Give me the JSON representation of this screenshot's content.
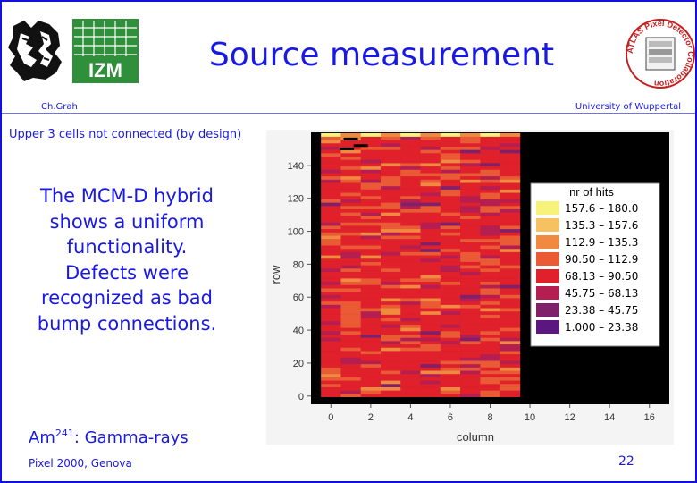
{
  "header": {
    "title": "Source measurement",
    "author": "Ch.Grah",
    "institution": "University of Wuppertal",
    "logo_left_text": "IZM",
    "logo_right_text": "ATLAS Pixel Detector Collaboration"
  },
  "content": {
    "note": "Upper 3 cells not connected (by design)",
    "body_text": "The MCM-D hybrid shows a uniform functionality. Defects were recognized as bad bump connections.",
    "gamma_prefix": "Am",
    "gamma_sup": "241",
    "gamma_suffix": ": Gamma-rays"
  },
  "footer": {
    "conference": "Pixel 2000, Genova",
    "page_number": "22"
  },
  "colors": {
    "text": "#1919e6",
    "background": "#ffffff",
    "border": "#1010e0"
  },
  "chart_data": {
    "type": "heatmap",
    "title": "",
    "xlabel": "column",
    "ylabel": "row",
    "xlim": [
      -1,
      17
    ],
    "ylim": [
      -5,
      160
    ],
    "x_ticks": [
      0,
      2,
      4,
      6,
      8,
      10,
      12,
      14,
      16
    ],
    "y_ticks": [
      0,
      20,
      40,
      60,
      80,
      100,
      120,
      140
    ],
    "data_columns": [
      0,
      9
    ],
    "data_rows": [
      0,
      159
    ],
    "empty_region": "columns 10 to 17 (black)",
    "legend": {
      "title": "nr of hits",
      "position": "top-right",
      "entries": [
        {
          "label": "157.6  –  180.0",
          "color": "#f6f27a"
        },
        {
          "label": "135.3  –  157.6",
          "color": "#f7c060"
        },
        {
          "label": "112.9  –  135.3",
          "color": "#f08a40"
        },
        {
          "label": "90.50  –  112.9",
          "color": "#ea5a35"
        },
        {
          "label": "68.13  –  90.50",
          "color": "#e0202a"
        },
        {
          "label": "45.75  –  68.13",
          "color": "#b51e50"
        },
        {
          "label": "23.38  –  45.75",
          "color": "#80206a"
        },
        {
          "label": "1.000  –  23.38",
          "color": "#5a1780"
        }
      ]
    }
  }
}
